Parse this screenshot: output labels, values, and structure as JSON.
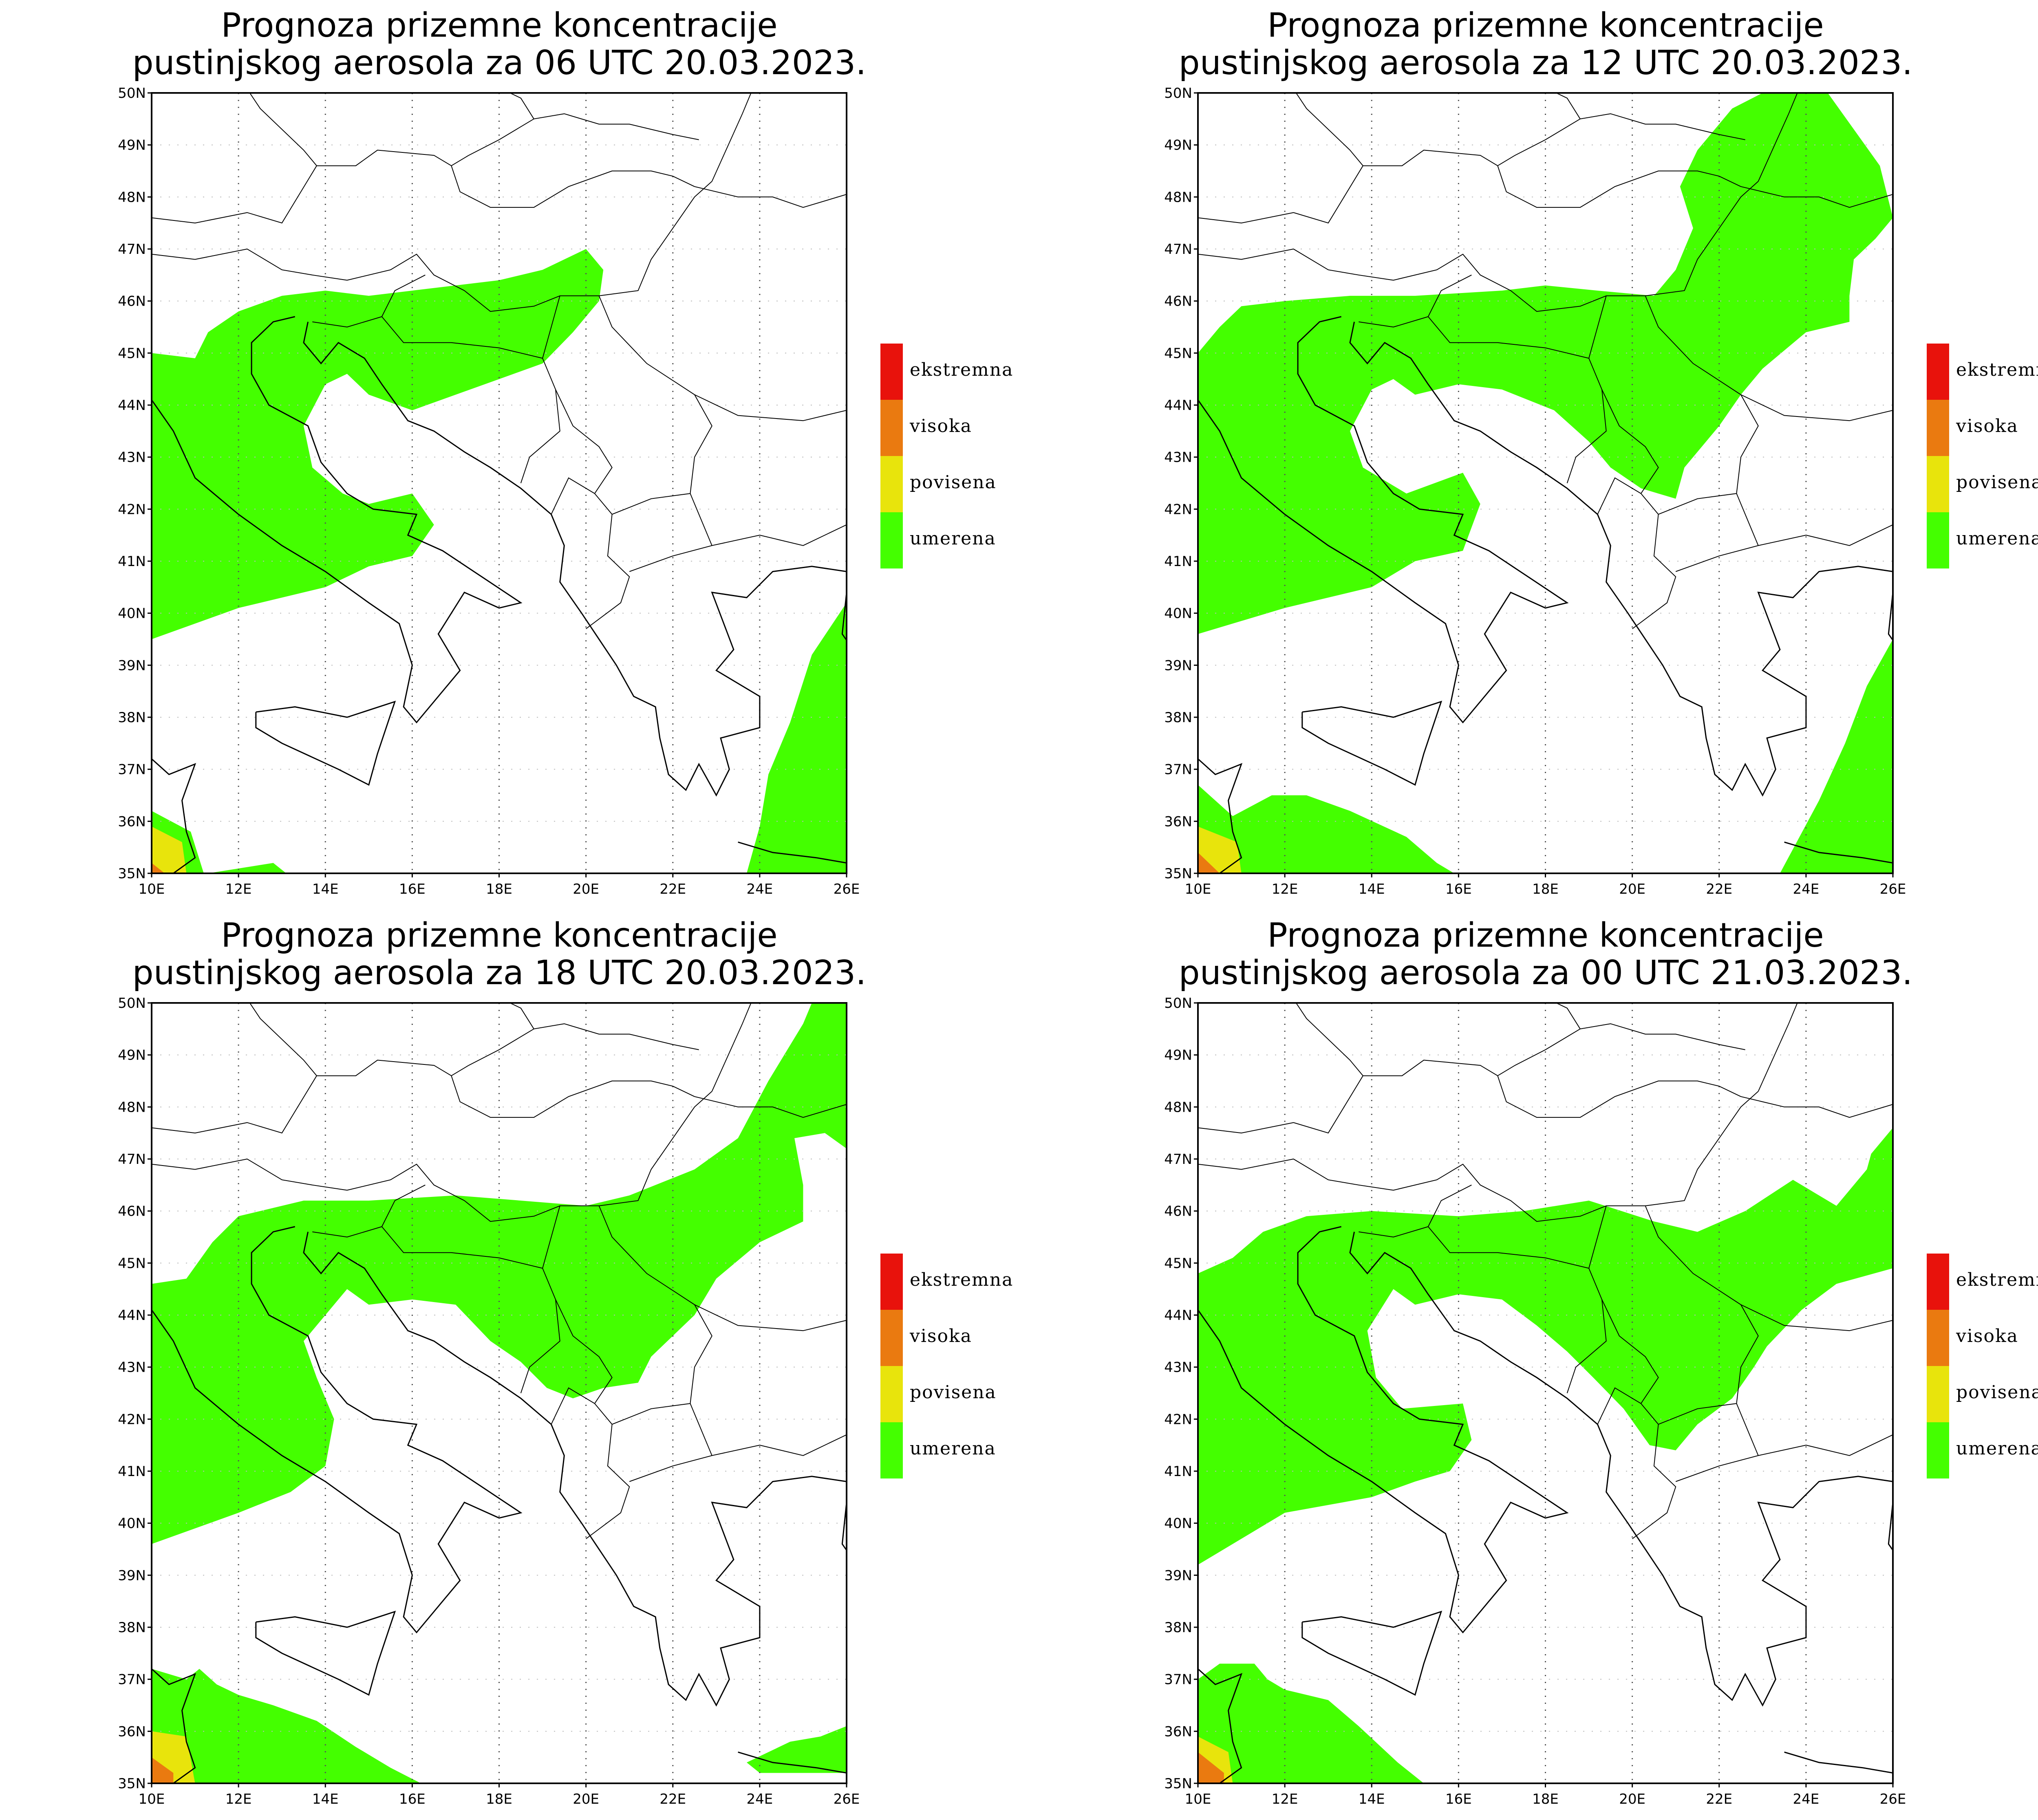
{
  "panels": [
    {
      "title_line1": "Prognoza prizemne koncentracije",
      "title_line2": "pustinjskog aerosola za 06 UTC 20.03.2023."
    },
    {
      "title_line1": "Prognoza prizemne koncentracije",
      "title_line2": "pustinjskog aerosola za 12 UTC 20.03.2023."
    },
    {
      "title_line1": "Prognoza prizemne koncentracije",
      "title_line2": "pustinjskog aerosola za 18 UTC 20.03.2023."
    },
    {
      "title_line1": "Prognoza prizemne koncentracije",
      "title_line2": "pustinjskog aerosola za 00 UTC 21.03.2023."
    }
  ],
  "axes": {
    "lat_labels": [
      "50N",
      "49N",
      "48N",
      "47N",
      "46N",
      "45N",
      "44N",
      "43N",
      "42N",
      "41N",
      "40N",
      "39N",
      "38N",
      "37N",
      "36N",
      "35N"
    ],
    "lon_labels": [
      "10E",
      "12E",
      "14E",
      "16E",
      "18E",
      "20E",
      "22E",
      "24E",
      "26E"
    ]
  },
  "legend": [
    {
      "label": "ekstremna",
      "color": "#e8120c"
    },
    {
      "label": "visoka",
      "color": "#ea7a10"
    },
    {
      "label": "povisena",
      "color": "#e8e40c"
    },
    {
      "label": "umerena",
      "color": "#44ff00"
    }
  ]
}
